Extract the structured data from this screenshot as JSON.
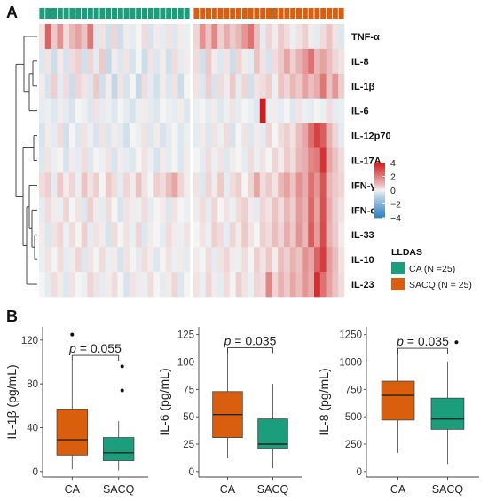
{
  "panels": {
    "a": "A",
    "b": "B"
  },
  "colors": {
    "ca": "#1a9e7c",
    "sacq": "#d95f0e",
    "neg": "#2f7fc1",
    "zero": "#f4f4f4",
    "pos": "#d01c1c"
  },
  "chart_data": [
    {
      "type": "heatmap",
      "rows": [
        "TNF-α",
        "IL-8",
        "IL-1β",
        "IL-6",
        "IL-12p70",
        "IL-17A",
        "IFN-γ",
        "IFN-α",
        "IL-33",
        "IL-10",
        "IL-23"
      ],
      "groups": [
        {
          "name": "CA",
          "n": 25
        },
        {
          "name": "SACQ",
          "n": 25
        }
      ],
      "color_scale": {
        "min": -4,
        "max": 4,
        "ticks": [
          "4",
          "2",
          "0",
          "−2",
          "−4"
        ]
      },
      "legend_title": "LLDAS",
      "legend_items": [
        "CA (N =25)",
        "SACQ (N = 25)"
      ],
      "dendrogram": true,
      "values": [
        [
          0.2,
          2.5,
          0.6,
          1.6,
          0.3,
          0.9,
          1.3,
          0.7,
          2.1,
          -0.3,
          0.2,
          -0.5,
          0.4,
          -0.6,
          0.1,
          -0.2,
          0.0,
          0.3,
          -0.4,
          0.1,
          -0.2,
          0.2,
          -0.3,
          0.1,
          -0.1,
          0.4,
          1.6,
          0.7,
          1.8,
          0.5,
          1.1,
          0.6,
          0.9,
          1.5,
          2.2,
          0.8,
          -0.2,
          0.4,
          0.1,
          0.6,
          0.3,
          -0.1,
          0.2,
          0.5,
          0.1,
          -0.2,
          0.3,
          0.7,
          0.2,
          -0.3
        ],
        [
          -0.3,
          0.2,
          -0.6,
          0.1,
          -0.4,
          0.3,
          0.5,
          -0.5,
          0.4,
          -0.2,
          0.6,
          -0.7,
          0.1,
          -0.3,
          0.2,
          -0.4,
          0.0,
          -0.6,
          0.2,
          -0.3,
          0.1,
          -0.5,
          0.3,
          -0.2,
          0.1,
          0.3,
          -0.5,
          0.6,
          0.1,
          -0.3,
          0.2,
          -0.6,
          0.4,
          0.1,
          -0.2,
          0.7,
          0.2,
          -0.4,
          0.3,
          0.6,
          1.2,
          0.5,
          1.0,
          1.5,
          2.2,
          0.9,
          1.3,
          0.8,
          0.4,
          0.2
        ],
        [
          0.1,
          -0.4,
          0.5,
          -0.2,
          0.3,
          -0.6,
          0.4,
          0.2,
          -0.3,
          0.6,
          -0.5,
          0.1,
          -0.8,
          0.2,
          -0.4,
          0.0,
          -0.7,
          0.3,
          -0.2,
          -0.5,
          0.1,
          -0.3,
          0.2,
          -0.6,
          0.0,
          0.2,
          -0.3,
          0.5,
          -0.4,
          0.3,
          0.1,
          0.6,
          -0.2,
          0.4,
          -0.5,
          0.2,
          0.3,
          0.5,
          -0.1,
          0.7,
          0.4,
          0.9,
          0.6,
          1.3,
          0.8,
          1.1,
          2.1,
          0.7,
          1.5,
          0.5
        ],
        [
          -0.2,
          -0.1,
          -0.3,
          0.1,
          -0.2,
          -0.4,
          0.0,
          -0.1,
          -0.3,
          0.2,
          -0.2,
          -0.1,
          -0.3,
          0.0,
          -0.2,
          -0.4,
          -0.1,
          0.1,
          -0.2,
          -0.3,
          0.0,
          -0.1,
          -0.2,
          0.1,
          -0.3,
          -0.1,
          0.0,
          -0.2,
          0.1,
          -0.3,
          -0.1,
          0.2,
          -0.2,
          0.0,
          -0.1,
          -0.3,
          4.0,
          -0.1,
          0.1,
          -0.2,
          0.0,
          -0.3,
          0.2,
          -0.1,
          -0.2,
          0.0,
          -0.1,
          0.3,
          -0.2,
          -0.1
        ],
        [
          -0.4,
          0.1,
          -0.2,
          0.3,
          -0.5,
          0.0,
          -0.3,
          0.2,
          -0.1,
          -0.4,
          0.2,
          -0.3,
          0.1,
          -0.2,
          -0.5,
          0.0,
          -0.1,
          0.2,
          -0.3,
          0.1,
          -0.4,
          -0.2,
          0.0,
          -0.3,
          -0.1,
          -0.2,
          0.1,
          -0.3,
          0.2,
          -0.1,
          0.3,
          -0.4,
          0.0,
          0.2,
          -0.3,
          0.1,
          -0.2,
          0.4,
          0.0,
          0.3,
          0.5,
          0.2,
          0.8,
          1.2,
          2.3,
          3.2,
          2.6,
          1.0,
          0.4,
          -0.2
        ],
        [
          -0.3,
          0.2,
          -0.1,
          0.0,
          -0.4,
          0.1,
          -0.2,
          0.3,
          -0.3,
          0.0,
          -0.1,
          0.2,
          -0.4,
          0.1,
          -0.2,
          -0.3,
          0.0,
          0.2,
          -0.1,
          -0.4,
          0.1,
          -0.2,
          0.0,
          -0.3,
          0.1,
          0.0,
          -0.2,
          0.3,
          -0.1,
          0.2,
          -0.3,
          0.1,
          0.0,
          -0.2,
          0.3,
          -0.1,
          0.2,
          0.0,
          0.4,
          0.1,
          0.6,
          0.3,
          0.9,
          1.1,
          1.8,
          2.0,
          3.5,
          1.2,
          0.7,
          0.3
        ],
        [
          0.3,
          0.5,
          -0.2,
          0.6,
          0.1,
          0.4,
          -0.1,
          0.7,
          0.2,
          0.5,
          0.0,
          0.6,
          0.3,
          -0.2,
          0.4,
          0.1,
          0.7,
          0.2,
          0.0,
          0.5,
          0.3,
          0.8,
          1.2,
          0.4,
          0.1,
          0.2,
          -0.3,
          0.4,
          0.1,
          0.6,
          -0.2,
          0.3,
          0.5,
          0.0,
          0.4,
          1.2,
          0.3,
          0.6,
          0.2,
          0.9,
          1.3,
          0.7,
          1.6,
          1.1,
          2.2,
          1.5,
          2.8,
          0.9,
          0.6,
          0.4
        ],
        [
          -0.2,
          0.3,
          0.1,
          -0.1,
          0.4,
          0.0,
          0.2,
          -0.3,
          0.5,
          0.1,
          -0.2,
          0.3,
          0.0,
          -0.4,
          0.2,
          0.1,
          -0.1,
          0.3,
          -0.2,
          0.0,
          0.1,
          -0.3,
          0.2,
          0.0,
          -0.1,
          0.1,
          0.3,
          -0.2,
          0.4,
          0.0,
          0.2,
          -0.1,
          0.3,
          0.5,
          0.1,
          -0.2,
          0.4,
          0.2,
          0.7,
          0.3,
          0.9,
          0.5,
          1.4,
          1.0,
          2.4,
          1.3,
          2.9,
          1.1,
          0.5,
          0.2
        ],
        [
          0.1,
          -0.3,
          0.2,
          0.4,
          -0.1,
          0.3,
          0.0,
          0.5,
          -0.2,
          0.2,
          0.1,
          -0.4,
          0.3,
          0.0,
          0.2,
          -0.1,
          0.4,
          -0.3,
          0.1,
          0.0,
          -0.2,
          0.3,
          0.1,
          -0.1,
          0.2,
          0.0,
          0.2,
          -0.1,
          0.5,
          0.3,
          -0.2,
          0.4,
          0.1,
          0.6,
          0.2,
          0.0,
          0.5,
          0.3,
          0.8,
          0.4,
          1.1,
          0.6,
          1.5,
          0.9,
          2.6,
          1.4,
          3.0,
          1.0,
          0.6,
          0.1
        ],
        [
          -0.1,
          0.2,
          0.0,
          0.3,
          -0.2,
          0.1,
          0.4,
          -0.3,
          0.2,
          0.0,
          0.3,
          -0.1,
          0.1,
          -0.4,
          0.2,
          0.0,
          -0.2,
          0.3,
          0.1,
          -0.3,
          0.0,
          0.2,
          -0.1,
          0.1,
          -0.2,
          0.1,
          0.0,
          0.3,
          -0.2,
          0.2,
          0.4,
          0.1,
          -0.1,
          0.3,
          0.0,
          0.5,
          0.2,
          0.6,
          0.1,
          0.8,
          0.5,
          1.0,
          0.7,
          1.6,
          1.2,
          2.5,
          3.3,
          1.4,
          0.8,
          0.2
        ],
        [
          0.0,
          -0.2,
          0.3,
          0.1,
          -0.3,
          0.2,
          0.0,
          -0.1,
          0.4,
          0.2,
          -0.2,
          0.1,
          0.3,
          0.0,
          -0.4,
          0.2,
          0.1,
          -0.1,
          0.3,
          0.0,
          -0.2,
          0.1,
          0.4,
          -0.3,
          0.0,
          0.2,
          -0.1,
          0.4,
          0.1,
          -0.2,
          0.3,
          0.0,
          0.5,
          0.2,
          -0.1,
          0.4,
          0.3,
          1.8,
          0.4,
          1.0,
          0.6,
          1.2,
          0.8,
          1.5,
          1.1,
          3.6,
          2.2,
          1.3,
          0.7,
          0.3
        ]
      ]
    },
    {
      "type": "box",
      "ylabel": "IL-1β (pg/mL)",
      "categories": [
        "CA",
        "SACQ"
      ],
      "yticks": [
        0,
        40,
        80,
        120
      ],
      "ylim": [
        -5,
        132
      ],
      "boxes": [
        {
          "name": "CA",
          "min": 2,
          "q1": 15,
          "median": 29,
          "q3": 57,
          "max": 101,
          "outliers": [
            125
          ]
        },
        {
          "name": "SACQ",
          "min": 1,
          "q1": 10,
          "median": 17,
          "q3": 31,
          "max": 46,
          "outliers": [
            74,
            96
          ]
        }
      ],
      "annotation": {
        "p": "p",
        "rest": " = 0.055",
        "y": 106
      }
    },
    {
      "type": "box",
      "ylabel": "IL-6 (pg/mL)",
      "categories": [
        "CA",
        "SACQ"
      ],
      "yticks": [
        0,
        25,
        50,
        75,
        100,
        125
      ],
      "ylim": [
        -5,
        132
      ],
      "boxes": [
        {
          "name": "CA",
          "min": 12,
          "q1": 31,
          "median": 52,
          "q3": 73,
          "max": 113,
          "outliers": []
        },
        {
          "name": "SACQ",
          "min": 3,
          "q1": 21,
          "median": 25,
          "q3": 48,
          "max": 80,
          "outliers": []
        }
      ],
      "annotation": {
        "p": "p",
        "rest": " = 0.035",
        "y": 113
      }
    },
    {
      "type": "box",
      "ylabel": "IL-8 (pg/mL)",
      "categories": [
        "CA",
        "SACQ"
      ],
      "yticks": [
        0,
        250,
        500,
        750,
        1000,
        1250
      ],
      "ylim": [
        -50,
        1320
      ],
      "boxes": [
        {
          "name": "CA",
          "min": 170,
          "q1": 470,
          "median": 695,
          "q3": 825,
          "max": 1125,
          "outliers": []
        },
        {
          "name": "SACQ",
          "min": 70,
          "q1": 385,
          "median": 480,
          "q3": 670,
          "max": 1005,
          "outliers": [
            1180
          ]
        }
      ],
      "annotation": {
        "p": "p",
        "rest": " = 0.035",
        "y": 1125
      }
    }
  ]
}
